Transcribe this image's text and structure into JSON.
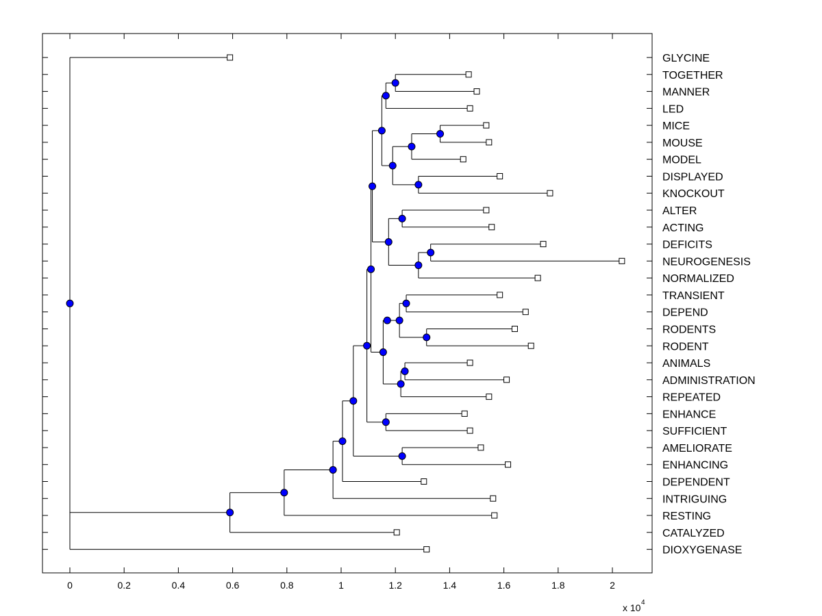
{
  "chart_data": {
    "type": "dendrogram",
    "orientation": "horizontal",
    "title": "",
    "xlabel": "",
    "ylabel": "",
    "x_multiplier_label": "x 10",
    "x_multiplier_exponent": "4",
    "xlim": [
      -0.1,
      2.13
    ],
    "xticks": [
      0,
      0.2,
      0.4,
      0.6,
      0.8,
      1,
      1.2,
      1.4,
      1.6,
      1.8,
      2
    ],
    "xtick_labels": [
      "0",
      "0.2",
      "0.4",
      "0.6",
      "0.8",
      "1",
      "1.2",
      "1.4",
      "1.6",
      "1.8",
      "2"
    ],
    "leaves": [
      {
        "name": "GLYCINE",
        "x": 0.59
      },
      {
        "name": "TOGETHER",
        "x": 1.47
      },
      {
        "name": "MANNER",
        "x": 1.5
      },
      {
        "name": "LED",
        "x": 1.475
      },
      {
        "name": "MICE",
        "x": 1.535
      },
      {
        "name": "MOUSE",
        "x": 1.545
      },
      {
        "name": "MODEL",
        "x": 1.45
      },
      {
        "name": "DISPLAYED",
        "x": 1.585
      },
      {
        "name": "KNOCKOUT",
        "x": 1.77
      },
      {
        "name": "ALTER",
        "x": 1.535
      },
      {
        "name": "ACTING",
        "x": 1.555
      },
      {
        "name": "DEFICITS",
        "x": 1.745
      },
      {
        "name": "NEUROGENESIS",
        "x": 2.035
      },
      {
        "name": "NORMALIZED",
        "x": 1.725
      },
      {
        "name": "TRANSIENT",
        "x": 1.585
      },
      {
        "name": "DEPEND",
        "x": 1.68
      },
      {
        "name": "RODENTS",
        "x": 1.64
      },
      {
        "name": "RODENT",
        "x": 1.7
      },
      {
        "name": "ANIMALS",
        "x": 1.475
      },
      {
        "name": "ADMINISTRATION",
        "x": 1.61
      },
      {
        "name": "REPEATED",
        "x": 1.545
      },
      {
        "name": "ENHANCE",
        "x": 1.455
      },
      {
        "name": "SUFFICIENT",
        "x": 1.475
      },
      {
        "name": "AMELIORATE",
        "x": 1.515
      },
      {
        "name": "ENHANCING",
        "x": 1.615
      },
      {
        "name": "DEPENDENT",
        "x": 1.305
      },
      {
        "name": "INTRIGUING",
        "x": 1.56
      },
      {
        "name": "RESTING",
        "x": 1.565
      },
      {
        "name": "CATALYZED",
        "x": 1.205
      },
      {
        "name": "DIOXYGENASE",
        "x": 1.315
      }
    ],
    "tree": {
      "x": 0,
      "children": [
        {
          "leaf": 0
        },
        {
          "x": 0.59,
          "children": [
            {
              "x": 0.79,
              "children": [
                {
                  "x": 0.97,
                  "children": [
                    {
                      "x": 1.005,
                      "children": [
                        {
                          "x": 1.045,
                          "children": [
                            {
                              "x": 1.095,
                              "children": [
                                {
                                  "x": 1.11,
                                  "children": [
                                    {
                                      "x": 1.115,
                                      "children": [
                                        {
                                          "x": 1.15,
                                          "children": [
                                            {
                                              "x": 1.165,
                                              "children": [
                                                {
                                                  "x": 1.2,
                                                  "children": [
                                                    {
                                                      "leaf": 1
                                                    },
                                                    {
                                                      "leaf": 2
                                                    }
                                                  ]
                                                },
                                                {
                                                  "leaf": 3
                                                }
                                              ]
                                            },
                                            {
                                              "x": 1.19,
                                              "children": [
                                                {
                                                  "x": 1.26,
                                                  "children": [
                                                    {
                                                      "x": 1.365,
                                                      "children": [
                                                        {
                                                          "leaf": 4
                                                        },
                                                        {
                                                          "leaf": 5
                                                        }
                                                      ]
                                                    },
                                                    {
                                                      "leaf": 6
                                                    }
                                                  ]
                                                },
                                                {
                                                  "x": 1.285,
                                                  "children": [
                                                    {
                                                      "leaf": 7
                                                    },
                                                    {
                                                      "leaf": 8
                                                    }
                                                  ]
                                                }
                                              ]
                                            }
                                          ]
                                        },
                                        {
                                          "x": 1.175,
                                          "children": [
                                            {
                                              "x": 1.225,
                                              "children": [
                                                {
                                                  "leaf": 9
                                                },
                                                {
                                                  "leaf": 10
                                                }
                                              ]
                                            },
                                            {
                                              "x": 1.285,
                                              "children": [
                                                {
                                                  "x": 1.33,
                                                  "children": [
                                                    {
                                                      "leaf": 11
                                                    },
                                                    {
                                                      "leaf": 12
                                                    }
                                                  ]
                                                },
                                                {
                                                  "leaf": 13
                                                }
                                              ]
                                            }
                                          ]
                                        }
                                      ]
                                    },
                                    {
                                      "x": 1.155,
                                      "children": [
                                        {
                                          "x": 1.17,
                                          "children": [
                                            {
                                              "x": 1.215,
                                              "children": [
                                                {
                                                  "x": 1.24,
                                                  "children": [
                                                    {
                                                      "leaf": 14
                                                    },
                                                    {
                                                      "leaf": 15
                                                    }
                                                  ]
                                                },
                                                {
                                                  "x": 1.315,
                                                  "children": [
                                                    {
                                                      "leaf": 16
                                                    },
                                                    {
                                                      "leaf": 17
                                                    }
                                                  ]
                                                }
                                              ]
                                            }
                                          ]
                                        },
                                        {
                                          "x": 1.22,
                                          "children": [
                                            {
                                              "x": 1.235,
                                              "children": [
                                                {
                                                  "leaf": 18
                                                },
                                                {
                                                  "leaf": 19
                                                }
                                              ]
                                            },
                                            {
                                              "leaf": 20
                                            }
                                          ]
                                        }
                                      ]
                                    }
                                  ]
                                },
                                {
                                  "x": 1.165,
                                  "children": [
                                    {
                                      "leaf": 21
                                    },
                                    {
                                      "leaf": 22
                                    }
                                  ]
                                }
                              ]
                            },
                            {
                              "x": 1.225,
                              "children": [
                                {
                                  "leaf": 23
                                },
                                {
                                  "leaf": 24
                                }
                              ]
                            }
                          ]
                        },
                        {
                          "leaf": 25
                        }
                      ]
                    },
                    {
                      "leaf": 26
                    }
                  ]
                },
                {
                  "leaf": 27
                }
              ]
            },
            {
              "leaf": 28
            }
          ]
        },
        {
          "leaf": 29
        }
      ]
    },
    "colors": {
      "line": "#000000",
      "node_fill": "#0000ff",
      "node_stroke": "#000000",
      "leaf_fill": "#ffffff",
      "leaf_stroke": "#000000",
      "frame": "#000000"
    }
  }
}
